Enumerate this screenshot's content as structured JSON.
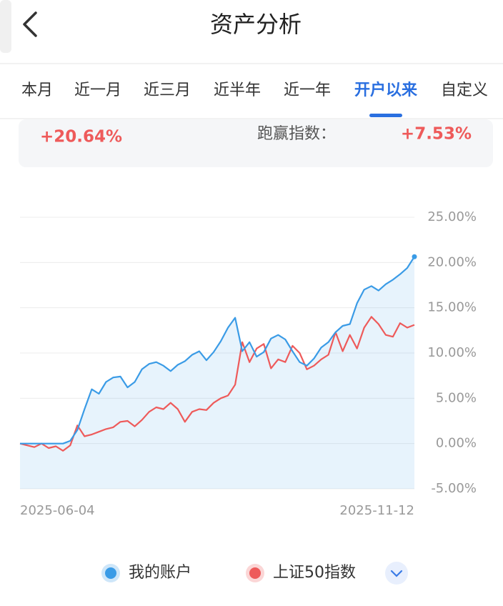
{
  "header": {
    "title": "资产分析"
  },
  "tabs": [
    "本月",
    "近一月",
    "近三月",
    "近半年",
    "近一年",
    "开户以来",
    "自定义"
  ],
  "active_tab": 5,
  "summary": {
    "account_return": "+20.64%",
    "beat_label": "跑赢指数：",
    "beat_value": "+7.53%"
  },
  "chart_data": {
    "type": "line",
    "categories": [
      "2025-06-04",
      null,
      null,
      null,
      null,
      null,
      null,
      null,
      null,
      null,
      null,
      null,
      null,
      null,
      null,
      null,
      null,
      null,
      null,
      null,
      null,
      null,
      null,
      null,
      null,
      null,
      null,
      null,
      null,
      null,
      null,
      null,
      null,
      null,
      null,
      null,
      null,
      null,
      null,
      null,
      null,
      null,
      null,
      null,
      null,
      null,
      null,
      null,
      null,
      null,
      null,
      null,
      null,
      null,
      null,
      "2025-11-12"
    ],
    "series": [
      {
        "name": "我的账户",
        "color": "#3a9be6",
        "values": [
          0,
          0,
          0,
          0,
          0,
          0,
          0,
          0.3,
          1.5,
          3.8,
          6,
          5.5,
          6.8,
          7.3,
          7.4,
          6.2,
          6.8,
          8.2,
          8.8,
          9,
          8.6,
          8,
          8.7,
          9.1,
          9.8,
          10.2,
          9.2,
          10.1,
          11.3,
          12.8,
          13.9,
          10.2,
          11.2,
          9.6,
          10.1,
          11.6,
          12,
          11.5,
          10.2,
          9,
          8.6,
          9.4,
          10.6,
          11.2,
          12.3,
          13,
          13.2,
          15.5,
          17,
          17.4,
          16.9,
          17.6,
          18.1,
          18.7,
          19.4,
          20.64
        ]
      },
      {
        "name": "上证50指数",
        "color": "#ee5a5a",
        "values": [
          0,
          -0.2,
          -0.4,
          0,
          -0.5,
          -0.3,
          -0.8,
          -0.2,
          2,
          0.8,
          1,
          1.3,
          1.6,
          1.8,
          2.4,
          2.5,
          1.9,
          2.6,
          3.5,
          4,
          3.8,
          4.5,
          3.8,
          2.4,
          3.5,
          3.8,
          3.7,
          4.5,
          5,
          5.3,
          6.5,
          11.2,
          9,
          10.5,
          11,
          8.3,
          9.3,
          9,
          10.8,
          10,
          8.2,
          8.6,
          9.3,
          9.8,
          12.3,
          10.2,
          12,
          10.5,
          12.8,
          14,
          13.2,
          12,
          11.8,
          13.3,
          12.8,
          13.11
        ]
      }
    ],
    "ylim": [
      -5,
      25
    ],
    "yticks": [
      {
        "value": -5,
        "label": "-5.00%"
      },
      {
        "value": 0,
        "label": "0.00%"
      },
      {
        "value": 5,
        "label": "5.00%"
      },
      {
        "value": 10,
        "label": "10.00%"
      },
      {
        "value": 15,
        "label": "15.00%"
      },
      {
        "value": 20,
        "label": "20.00%"
      },
      {
        "value": 25,
        "label": "25.00%"
      }
    ],
    "grid": true
  }
}
